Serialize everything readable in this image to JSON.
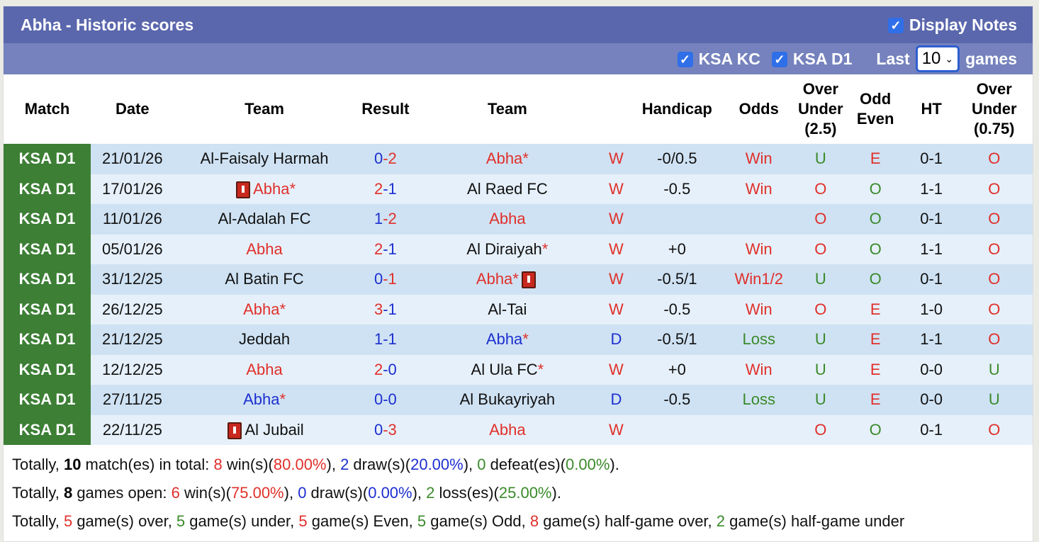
{
  "title": "Abha - Historic scores",
  "display_notes": {
    "label": "Display Notes",
    "checked": true
  },
  "filters": [
    {
      "label": "KSA KC",
      "checked": true
    },
    {
      "label": "KSA D1",
      "checked": true
    }
  ],
  "last_label": "Last",
  "last_value": "10",
  "games_label": "games",
  "columns": [
    "Match",
    "Date",
    "Team",
    "Result",
    "Team",
    "",
    "Handicap",
    "Odds",
    "Over\nUnder\n(2.5)",
    "Odd\nEven",
    "HT",
    "Over\nUnder\n(0.75)"
  ],
  "colors": {
    "header": "#5a67ad",
    "subheader": "#7582bd",
    "league": "#3c7f35",
    "red": "#e0302a",
    "blue": "#1c2fcf",
    "green": "#3a8a2a"
  },
  "rows": [
    {
      "league": "KSA D1",
      "date": "21/01/26",
      "home": {
        "name": "Abha",
        "c": "black",
        "n": "Al-Faisaly Harmah"
      },
      "hs": [
        "0",
        "blue"
      ],
      "as": [
        "2",
        "red"
      ],
      "away": {
        "n": "Abha",
        "c": "red",
        "star": true
      },
      "res": [
        "W",
        "red"
      ],
      "hcp": "-0/0.5",
      "odds": [
        "Win",
        "red"
      ],
      "ou": [
        "U",
        "green"
      ],
      "oe": [
        "E",
        "red"
      ],
      "ht": "0-1",
      "ou2": [
        "O",
        "red"
      ]
    },
    {
      "league": "KSA D1",
      "date": "17/01/26",
      "home": {
        "n": "Abha",
        "c": "red",
        "star": true,
        "card": "before"
      },
      "hs": [
        "2",
        "red"
      ],
      "as": [
        "1",
        "blue"
      ],
      "away": {
        "n": "Al Raed FC",
        "c": "black"
      },
      "res": [
        "W",
        "red"
      ],
      "hcp": "-0.5",
      "odds": [
        "Win",
        "red"
      ],
      "ou": [
        "O",
        "red"
      ],
      "oe": [
        "O",
        "green"
      ],
      "ht": "1-1",
      "ou2": [
        "O",
        "red"
      ]
    },
    {
      "league": "KSA D1",
      "date": "11/01/26",
      "home": {
        "n": "Al-Adalah FC",
        "c": "black"
      },
      "hs": [
        "1",
        "blue"
      ],
      "as": [
        "2",
        "red"
      ],
      "away": {
        "n": "Abha",
        "c": "red"
      },
      "res": [
        "W",
        "red"
      ],
      "hcp": "",
      "odds": [
        "",
        ""
      ],
      "ou": [
        "O",
        "red"
      ],
      "oe": [
        "O",
        "green"
      ],
      "ht": "0-1",
      "ou2": [
        "O",
        "red"
      ]
    },
    {
      "league": "KSA D1",
      "date": "05/01/26",
      "home": {
        "n": "Abha",
        "c": "red"
      },
      "hs": [
        "2",
        "red"
      ],
      "as": [
        "1",
        "blue"
      ],
      "away": {
        "n": "Al Diraiyah",
        "c": "black",
        "star": true
      },
      "res": [
        "W",
        "red"
      ],
      "hcp": "+0",
      "odds": [
        "Win",
        "red"
      ],
      "ou": [
        "O",
        "red"
      ],
      "oe": [
        "O",
        "green"
      ],
      "ht": "1-1",
      "ou2": [
        "O",
        "red"
      ]
    },
    {
      "league": "KSA D1",
      "date": "31/12/25",
      "home": {
        "n": "Al Batin FC",
        "c": "black"
      },
      "hs": [
        "0",
        "blue"
      ],
      "as": [
        "1",
        "red"
      ],
      "away": {
        "n": "Abha",
        "c": "red",
        "star": true,
        "card": "after"
      },
      "res": [
        "W",
        "red"
      ],
      "hcp": "-0.5/1",
      "odds": [
        "Win1/2",
        "red"
      ],
      "ou": [
        "U",
        "green"
      ],
      "oe": [
        "O",
        "green"
      ],
      "ht": "0-1",
      "ou2": [
        "O",
        "red"
      ]
    },
    {
      "league": "KSA D1",
      "date": "26/12/25",
      "home": {
        "n": "Abha",
        "c": "red",
        "star": true
      },
      "hs": [
        "3",
        "red"
      ],
      "as": [
        "1",
        "blue"
      ],
      "away": {
        "n": "Al-Tai",
        "c": "black"
      },
      "res": [
        "W",
        "red"
      ],
      "hcp": "-0.5",
      "odds": [
        "Win",
        "red"
      ],
      "ou": [
        "O",
        "red"
      ],
      "oe": [
        "E",
        "red"
      ],
      "ht": "1-0",
      "ou2": [
        "O",
        "red"
      ]
    },
    {
      "league": "KSA D1",
      "date": "21/12/25",
      "home": {
        "n": "Jeddah",
        "c": "black"
      },
      "hs": [
        "1",
        "blue"
      ],
      "as": [
        "1",
        "blue"
      ],
      "away": {
        "n": "Abha",
        "c": "blue",
        "star": true
      },
      "res": [
        "D",
        "blue"
      ],
      "hcp": "-0.5/1",
      "odds": [
        "Loss",
        "green"
      ],
      "ou": [
        "U",
        "green"
      ],
      "oe": [
        "E",
        "red"
      ],
      "ht": "1-1",
      "ou2": [
        "O",
        "red"
      ]
    },
    {
      "league": "KSA D1",
      "date": "12/12/25",
      "home": {
        "n": "Abha",
        "c": "red"
      },
      "hs": [
        "2",
        "red"
      ],
      "as": [
        "0",
        "blue"
      ],
      "away": {
        "n": "Al Ula FC",
        "c": "black",
        "star": true
      },
      "res": [
        "W",
        "red"
      ],
      "hcp": "+0",
      "odds": [
        "Win",
        "red"
      ],
      "ou": [
        "U",
        "green"
      ],
      "oe": [
        "E",
        "red"
      ],
      "ht": "0-0",
      "ou2": [
        "U",
        "green"
      ]
    },
    {
      "league": "KSA D1",
      "date": "27/11/25",
      "home": {
        "n": "Abha",
        "c": "blue",
        "star": true
      },
      "hs": [
        "0",
        "blue"
      ],
      "as": [
        "0",
        "blue"
      ],
      "away": {
        "n": "Al Bukayriyah",
        "c": "black"
      },
      "res": [
        "D",
        "blue"
      ],
      "hcp": "-0.5",
      "odds": [
        "Loss",
        "green"
      ],
      "ou": [
        "U",
        "green"
      ],
      "oe": [
        "E",
        "red"
      ],
      "ht": "0-0",
      "ou2": [
        "U",
        "green"
      ]
    },
    {
      "league": "KSA D1",
      "date": "22/11/25",
      "home": {
        "n": "Al Jubail",
        "c": "black",
        "card": "before"
      },
      "hs": [
        "0",
        "blue"
      ],
      "as": [
        "3",
        "red"
      ],
      "away": {
        "n": "Abha",
        "c": "red"
      },
      "res": [
        "W",
        "red"
      ],
      "hcp": "",
      "odds": [
        "",
        ""
      ],
      "ou": [
        "O",
        "red"
      ],
      "oe": [
        "O",
        "green"
      ],
      "ht": "0-1",
      "ou2": [
        "O",
        "red"
      ]
    }
  ],
  "summary": [
    [
      [
        "Totally, ",
        "black"
      ],
      [
        "10",
        "bold"
      ],
      [
        " match(es) in total: ",
        "black"
      ],
      [
        "8",
        "red"
      ],
      [
        " win(s)(",
        "black"
      ],
      [
        "80.00%",
        "red"
      ],
      [
        "), ",
        "black"
      ],
      [
        "2",
        "blue"
      ],
      [
        " draw(s)(",
        "black"
      ],
      [
        "20.00%",
        "blue"
      ],
      [
        "), ",
        "black"
      ],
      [
        "0",
        "green"
      ],
      [
        " defeat(es)(",
        "black"
      ],
      [
        "0.00%",
        "green"
      ],
      [
        ").",
        "black"
      ]
    ],
    [
      [
        "Totally, ",
        "black"
      ],
      [
        "8",
        "bold"
      ],
      [
        " games open: ",
        "black"
      ],
      [
        "6",
        "red"
      ],
      [
        " win(s)(",
        "black"
      ],
      [
        "75.00%",
        "red"
      ],
      [
        "), ",
        "black"
      ],
      [
        "0",
        "blue"
      ],
      [
        " draw(s)(",
        "black"
      ],
      [
        "0.00%",
        "blue"
      ],
      [
        "), ",
        "black"
      ],
      [
        "2",
        "green"
      ],
      [
        " loss(es)(",
        "black"
      ],
      [
        "25.00%",
        "green"
      ],
      [
        ").",
        "black"
      ]
    ],
    [
      [
        "Totally, ",
        "black"
      ],
      [
        "5",
        "red"
      ],
      [
        " game(s) over, ",
        "black"
      ],
      [
        "5",
        "green"
      ],
      [
        " game(s) under, ",
        "black"
      ],
      [
        "5",
        "red"
      ],
      [
        " game(s) Even, ",
        "black"
      ],
      [
        "5",
        "green"
      ],
      [
        " game(s) Odd, ",
        "black"
      ],
      [
        "8",
        "red"
      ],
      [
        " game(s) half-game over, ",
        "black"
      ],
      [
        "2",
        "green"
      ],
      [
        " game(s) half-game under",
        "black"
      ]
    ]
  ]
}
